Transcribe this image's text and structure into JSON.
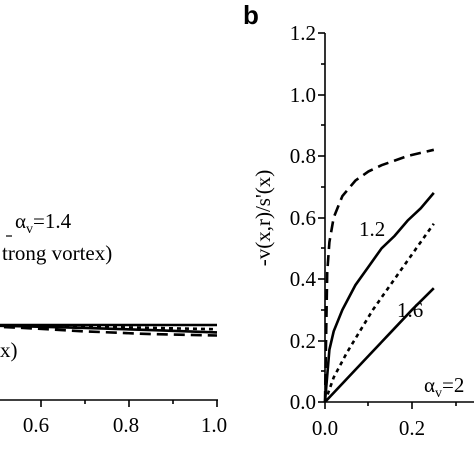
{
  "chart_data": [
    {
      "type": "line",
      "panel": "",
      "xlabel": "",
      "ylabel": "",
      "x_ticks": [
        "0.6",
        "0.8",
        "1.0"
      ],
      "annotations": [
        {
          "prefix": "α",
          "sub": "v",
          "suffix": "=1.4"
        },
        {
          "text": "trong vortex)"
        },
        {
          "text": "x)"
        }
      ],
      "series": [
        {
          "style": "solid",
          "x": [
            0.4,
            0.6,
            0.8,
            1.0
          ],
          "y": [
            0.305,
            0.305,
            0.305,
            0.305
          ]
        },
        {
          "style": "solid",
          "x": [
            0.4,
            0.55,
            0.7,
            0.85,
            1.0
          ],
          "y": [
            0.305,
            0.3,
            0.293,
            0.284,
            0.275
          ]
        },
        {
          "style": "dotted",
          "x": [
            0.4,
            0.55,
            0.7,
            0.85,
            1.0
          ],
          "y": [
            0.305,
            0.302,
            0.298,
            0.293,
            0.288
          ]
        },
        {
          "style": "dashed",
          "x": [
            0.4,
            0.55,
            0.7,
            0.85,
            1.0
          ],
          "y": [
            0.305,
            0.294,
            0.279,
            0.268,
            0.262
          ]
        }
      ]
    },
    {
      "type": "line",
      "panel": "b",
      "xlabel": "",
      "ylabel": "-v(x,r)/s'(x)",
      "xlim": [
        0.0,
        0.25
      ],
      "ylim": [
        0.0,
        1.2
      ],
      "x_ticks": [
        "0.0",
        "0.2"
      ],
      "y_ticks": [
        "0.0",
        "0.2",
        "0.4",
        "0.6",
        "0.8",
        "1.0",
        "1.2"
      ],
      "annotations": [
        {
          "text": "1.2"
        },
        {
          "text": "1.6"
        },
        {
          "prefix": "α",
          "sub": "v",
          "suffix": "=2"
        }
      ],
      "series": [
        {
          "style": "dashed",
          "x": [
            0,
            0.005,
            0.01,
            0.02,
            0.04,
            0.07,
            0.1,
            0.13,
            0.16,
            0.19,
            0.22,
            0.25
          ],
          "y": [
            0,
            0.42,
            0.52,
            0.6,
            0.67,
            0.72,
            0.75,
            0.77,
            0.785,
            0.8,
            0.81,
            0.82
          ]
        },
        {
          "style": "solid",
          "x": [
            0,
            0.01,
            0.02,
            0.04,
            0.07,
            0.1,
            0.13,
            0.16,
            0.19,
            0.22,
            0.25
          ],
          "y": [
            0,
            0.17,
            0.23,
            0.3,
            0.38,
            0.44,
            0.5,
            0.54,
            0.59,
            0.63,
            0.68
          ]
        },
        {
          "style": "dotted",
          "x": [
            0,
            0.02,
            0.05,
            0.08,
            0.11,
            0.14,
            0.17,
            0.2,
            0.23,
            0.25
          ],
          "y": [
            0,
            0.08,
            0.16,
            0.23,
            0.3,
            0.36,
            0.42,
            0.48,
            0.54,
            0.58
          ]
        },
        {
          "style": "solid",
          "x": [
            0,
            0.05,
            0.1,
            0.15,
            0.2,
            0.25
          ],
          "y": [
            0,
            0.075,
            0.15,
            0.225,
            0.3,
            0.37
          ]
        }
      ]
    }
  ]
}
